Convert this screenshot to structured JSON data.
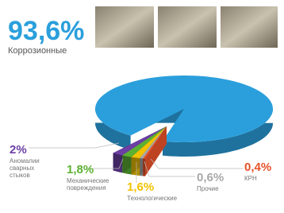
{
  "chart_data": {
    "type": "pie",
    "categories": [
      "Коррозионные",
      "Аномалии сварных стыков",
      "Механические повреждения",
      "Технологические",
      "Прочие",
      "КРН"
    ],
    "values": [
      93.6,
      2,
      1.8,
      1.6,
      0.6,
      0.4
    ],
    "value_labels": [
      "93,6%",
      "2%",
      "1,8%",
      "1,6%",
      "0,6%",
      "0,4%"
    ],
    "colors": [
      "#2b9fdc",
      "#6b3fa3",
      "#5cb133",
      "#f2c200",
      "#a8a8a8",
      "#e8522a"
    ]
  }
}
